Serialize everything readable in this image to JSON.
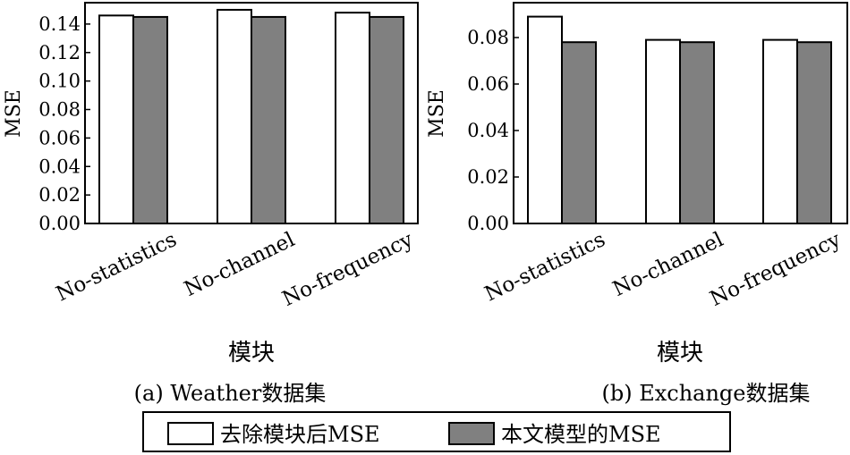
{
  "chart_data": [
    {
      "type": "bar",
      "categories": [
        "No-statistics",
        "No-channel",
        "No-frequency"
      ],
      "series": [
        {
          "name": "去除模块后MSE",
          "values": [
            0.146,
            0.15,
            0.148
          ]
        },
        {
          "name": "本文模型的MSE",
          "values": [
            0.145,
            0.145,
            0.145
          ]
        }
      ],
      "ylabel": "MSE",
      "xlabel": "模块",
      "caption": "(a) Weather数据集",
      "ylim": [
        0,
        0.155
      ],
      "yticks": [
        "0.00",
        "0.02",
        "0.04",
        "0.06",
        "0.08",
        "0.10",
        "0.12",
        "0.14"
      ],
      "grid": false
    },
    {
      "type": "bar",
      "categories": [
        "No-statistics",
        "No-channel",
        "No-frequency"
      ],
      "series": [
        {
          "name": "去除模块后MSE",
          "values": [
            0.089,
            0.079,
            0.079
          ]
        },
        {
          "name": "本文模型的MSE",
          "values": [
            0.078,
            0.078,
            0.078
          ]
        }
      ],
      "ylabel": "MSE",
      "xlabel": "模块",
      "caption": "(b) Exchange数据集",
      "ylim": [
        0,
        0.095
      ],
      "yticks": [
        "0.00",
        "0.02",
        "0.04",
        "0.06",
        "0.08"
      ],
      "grid": false
    }
  ],
  "legend": {
    "placement": "bottom-center",
    "items": [
      {
        "label": "去除模块后MSE",
        "color": "#ffffff"
      },
      {
        "label": "本文模型的MSE",
        "color": "#808080"
      }
    ]
  },
  "colors": {
    "series_1": "#ffffff",
    "series_2": "#808080",
    "stroke": "#000000"
  }
}
